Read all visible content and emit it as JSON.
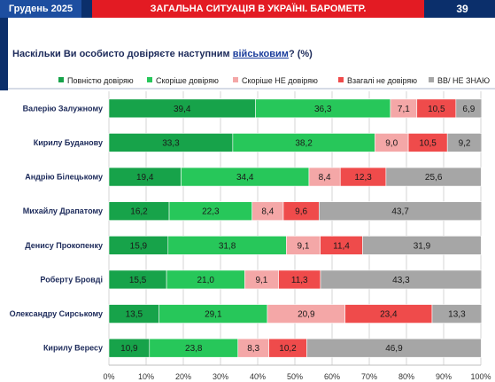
{
  "header": {
    "date": "Грудень 2025",
    "title": "ЗАГАЛЬНА СИТУАЦІЯ В УКРАЇНІ. БАРОМЕТР.",
    "page": "39"
  },
  "question": {
    "before": "Наскільки Ви особисто довіряєте наступним ",
    "keyword": "військовим",
    "after": "? (%)"
  },
  "colors": {
    "header_navy": "#0b2f6b",
    "header_blue": "#1d4ea0",
    "header_red": "#e31b23"
  },
  "chart_data": {
    "type": "bar",
    "orientation": "horizontal",
    "stacked": true,
    "categories": [
      "Валерію Залужному",
      "Кирилу Буданову",
      "Андрію Білецькому",
      "Михайлу Драпатому",
      "Денису Прокопенку",
      "Роберту Бровді",
      "Олександру Сирському",
      "Кирилу Вересу"
    ],
    "series": [
      {
        "name": "Повністю довіряю",
        "color": "#17a34a",
        "values": [
          39.4,
          33.3,
          19.4,
          16.2,
          15.9,
          15.5,
          13.5,
          10.9
        ]
      },
      {
        "name": "Скоріше довіряю",
        "color": "#27c75a",
        "values": [
          36.3,
          38.2,
          34.4,
          22.3,
          31.8,
          21.0,
          29.1,
          23.8
        ]
      },
      {
        "name": "Скоріше НЕ довіряю",
        "color": "#f4a7a7",
        "values": [
          7.1,
          9.0,
          8.4,
          8.4,
          9.1,
          9.1,
          20.9,
          8.3
        ]
      },
      {
        "name": "Взагалі не  довіряю",
        "color": "#ef4b4b",
        "values": [
          10.5,
          10.5,
          12.3,
          9.6,
          11.4,
          11.3,
          23.4,
          10.2
        ]
      },
      {
        "name": "ВВ/ НЕ ЗНАЮ",
        "color": "#a6a6a6",
        "values": [
          6.9,
          9.2,
          25.6,
          43.7,
          31.9,
          43.3,
          13.3,
          46.9
        ]
      }
    ],
    "value_labels": [
      [
        "39,4",
        "36,3",
        "7,1",
        "10,5",
        "6,9"
      ],
      [
        "33,3",
        "38,2",
        "9,0",
        "10,5",
        "9,2"
      ],
      [
        "19,4",
        "34,4",
        "8,4",
        "12,3",
        "25,6"
      ],
      [
        "16,2",
        "22,3",
        "8,4",
        "9,6",
        "43,7"
      ],
      [
        "15,9",
        "31,8",
        "9,1",
        "11,4",
        "31,9"
      ],
      [
        "15,5",
        "21,0",
        "9,1",
        "11,3",
        "43,3"
      ],
      [
        "13,5",
        "29,1",
        "20,9",
        "23,4",
        "13,3"
      ],
      [
        "10,9",
        "23,8",
        "8,3",
        "10,2",
        "46,9"
      ]
    ],
    "x_ticks": [
      0,
      10,
      20,
      30,
      40,
      50,
      60,
      70,
      80,
      90,
      100
    ],
    "x_tick_labels": [
      "0%",
      "10%",
      "20%",
      "30%",
      "40%",
      "50%",
      "60%",
      "70%",
      "80%",
      "90%",
      "100%"
    ],
    "xlim": [
      0,
      100
    ],
    "legend_position": "top",
    "grid": "vertical"
  }
}
